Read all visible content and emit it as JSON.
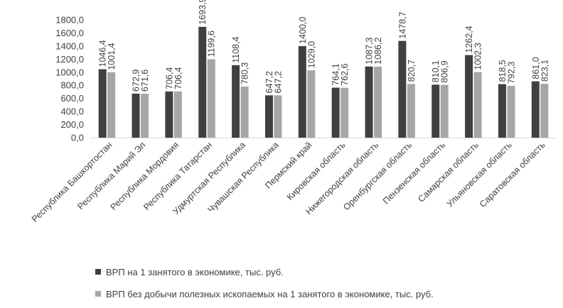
{
  "chart_data": {
    "type": "bar",
    "categories": [
      "Республика Башкортостан",
      "Республика Марий Эл",
      "Республика Мордовия",
      "Республика Татарстан",
      "Удмуртская Республика",
      "Чувашская Республика",
      "Пермский край",
      "Кировская область",
      "Нижегородская область",
      "Оренбургская область",
      "Пензенская область",
      "Самарская область",
      "Ульяновская область",
      "Саратовская область"
    ],
    "series": [
      {
        "name": "ВРП на 1 занятого в экономике, тыс. руб.",
        "color": "#404040",
        "values": [
          1046.4,
          672.9,
          706.4,
          1693.9,
          1108.4,
          647.2,
          1400.0,
          764.1,
          1087.3,
          1478.7,
          810.1,
          1262.4,
          818.5,
          861.0
        ],
        "labels": [
          "1046,4",
          "672,9",
          "706,4",
          "1693,9",
          "1108,4",
          "647,2",
          "1400,0",
          "764,1",
          "1087,3",
          "1478,7",
          "810,1",
          "1262,4",
          "818,5",
          "861,0"
        ]
      },
      {
        "name": "ВРП без добычи полезных ископаемых на 1 занятого в экономике, тыс. руб.",
        "color": "#a6a6a6",
        "values": [
          1001.4,
          671.6,
          706.4,
          1199.6,
          780.3,
          647.2,
          1029.0,
          762.6,
          1086.2,
          820.7,
          806.9,
          1002.3,
          792.3,
          823.1
        ],
        "labels": [
          "1001,4",
          "671,6",
          "706,4",
          "1199,6",
          "780,3",
          "647,2",
          "1029,0",
          "762,6",
          "1086,2",
          "820,7",
          "806,9",
          "1002,3",
          "792,3",
          "823,1"
        ]
      }
    ],
    "ylim": [
      0,
      1800
    ],
    "yticks": [
      "0,0",
      "200,0",
      "400,0",
      "600,0",
      "800,0",
      "1000,0",
      "1200,0",
      "1400,0",
      "1600,0",
      "1800,0"
    ],
    "grid": false,
    "legend_position": "bottom-left"
  }
}
